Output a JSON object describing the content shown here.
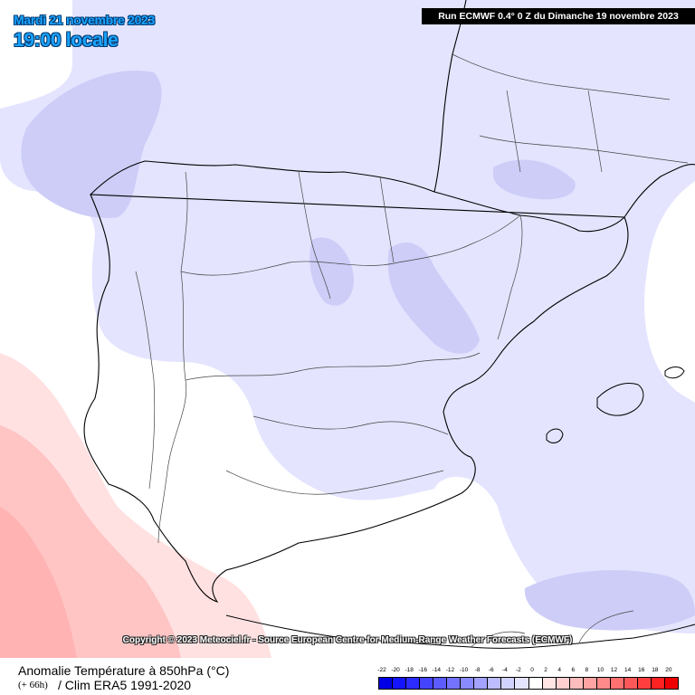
{
  "header": {
    "date": "Mardi 21 novembre 2023",
    "time": "19:00 locale",
    "run": "Run ECMWF 0.4° 0 Z du Dimanche 19 novembre 2023"
  },
  "copyright": "Copyright © 2023 Meteociel.fr - Source European Centre for Medium-Range Weather Forecasts (ECMWF)",
  "footer": {
    "title": "Anomalie Température à 850hPa (°C)",
    "lead_time": "(+ 66h)",
    "climatology": "/ Clim ERA5 1991-2020"
  },
  "legend": {
    "labels": [
      "-22",
      "-20",
      "-18",
      "-16",
      "-14",
      "-12",
      "-10",
      "-8",
      "-6",
      "-4",
      "-2",
      "0",
      "2",
      "4",
      "6",
      "8",
      "10",
      "12",
      "14",
      "16",
      "18",
      "20"
    ],
    "colors": [
      "#0000e6",
      "#1414ff",
      "#2b2bff",
      "#4444ff",
      "#5c5cff",
      "#7373ff",
      "#8a8aff",
      "#a3a3ff",
      "#bcbcff",
      "#d2d2ff",
      "#e4e4ff",
      "#ffffff",
      "#ffe4e4",
      "#ffd0d0",
      "#ffbcbc",
      "#ffa3a3",
      "#ff8a8a",
      "#ff7070",
      "#ff5858",
      "#ff3f3f",
      "#ff2222",
      "#ee0000"
    ]
  },
  "map": {
    "colors": {
      "sea_background": "#ffffff",
      "light_cold": "#e4e4ff",
      "medium_cold": "#cdcdf8",
      "light_warm": "#ffe1e1",
      "medium_warm": "#ffc4c4",
      "strong_warm": "#ffb3b3",
      "border": "#000000"
    }
  }
}
